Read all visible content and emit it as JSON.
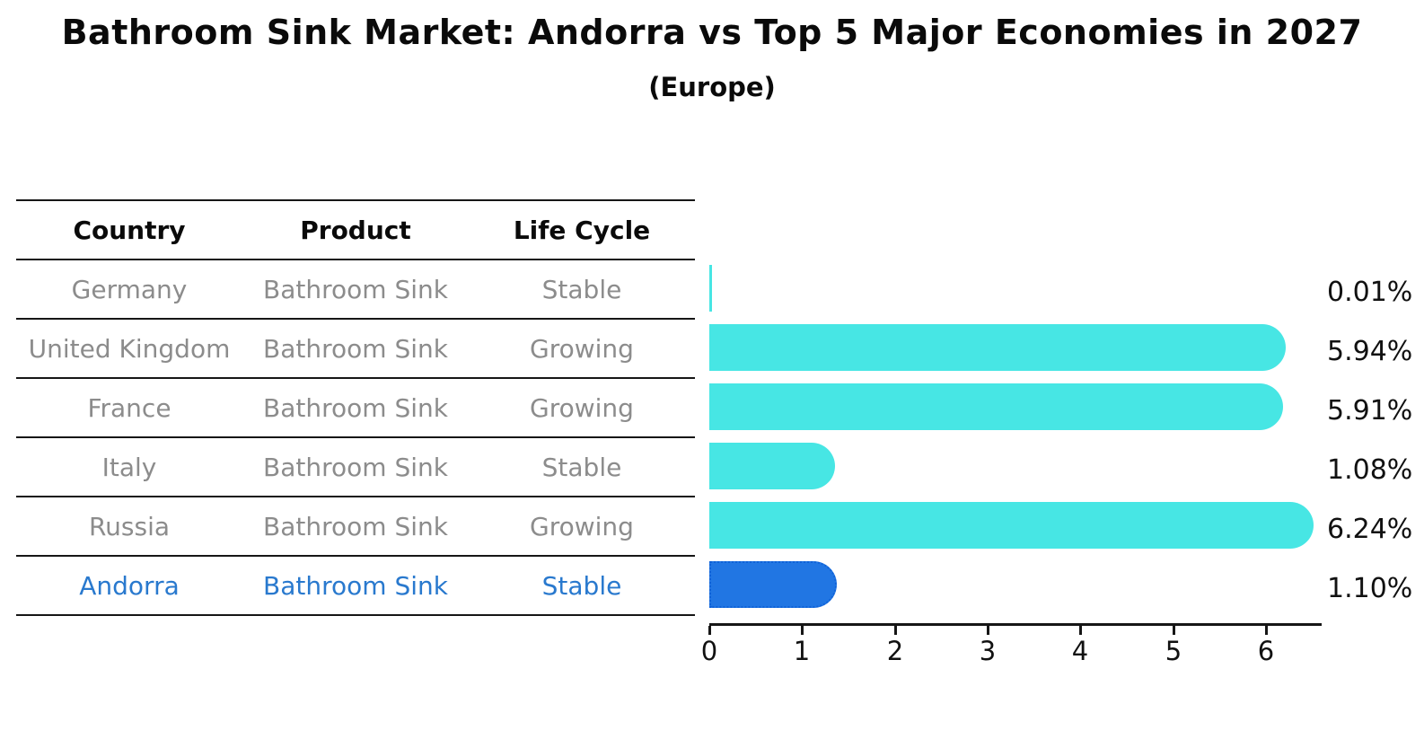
{
  "title": "Bathroom Sink Market: Andorra vs Top 5 Major Economies in 2027",
  "subtitle": "(Europe)",
  "table": {
    "headers": [
      "Country",
      "Product",
      "Life Cycle"
    ],
    "rows": [
      {
        "country": "Germany",
        "product": "Bathroom Sink",
        "life_cycle": "Stable"
      },
      {
        "country": "United Kingdom",
        "product": "Bathroom Sink",
        "life_cycle": "Growing"
      },
      {
        "country": "France",
        "product": "Bathroom Sink",
        "life_cycle": "Growing"
      },
      {
        "country": "Italy",
        "product": "Bathroom Sink",
        "life_cycle": "Stable"
      },
      {
        "country": "Russia",
        "product": "Bathroom Sink",
        "life_cycle": "Growing"
      },
      {
        "country": "Andorra",
        "product": "Bathroom Sink",
        "life_cycle": "Stable",
        "highlighted": true
      }
    ]
  },
  "chart_data": {
    "type": "bar",
    "orientation": "horizontal",
    "title": "Bathroom Sink Market: Andorra vs Top 5 Major Economies in 2027 (Europe)",
    "categories": [
      "Germany",
      "United Kingdom",
      "France",
      "Italy",
      "Russia",
      "Andorra"
    ],
    "values": [
      0.01,
      5.94,
      5.91,
      1.08,
      6.24,
      1.1
    ],
    "value_labels": [
      "0.01%",
      "5.94%",
      "5.91%",
      "1.08%",
      "6.24%",
      "1.10%"
    ],
    "x_ticks": [
      "0",
      "1",
      "2",
      "3",
      "4",
      "5",
      "6"
    ],
    "xlim": [
      0,
      6.6
    ],
    "grid": false,
    "legend": false,
    "highlight_index": 5,
    "bar_color": "#47e6e4",
    "highlight_bar_color": "#2176e3",
    "highlight_border_color": "#1062d8",
    "highlight_text_color": "#2979ce",
    "table_text_color": "#8c8c8c"
  }
}
